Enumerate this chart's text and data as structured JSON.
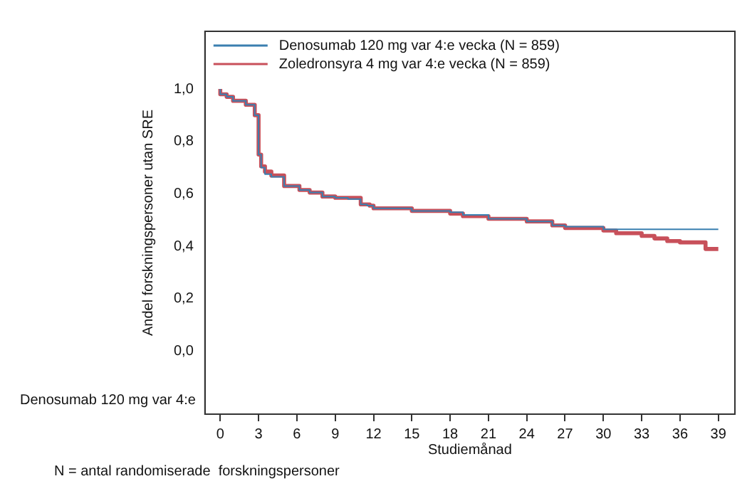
{
  "chart_data": {
    "type": "step",
    "xlabel": "Studiemånad",
    "ylabel": "Andel forskningspersoner utan SRE",
    "xlim": [
      -1.2,
      40.3
    ],
    "xticks": [
      0,
      3,
      6,
      9,
      12,
      15,
      18,
      21,
      24,
      27,
      30,
      33,
      36,
      39
    ],
    "ylim": [
      -0.24,
      1.22
    ],
    "yticks": [
      {
        "value": 0,
        "label": "0,0"
      },
      {
        "value": 0.2,
        "label": "0,2"
      },
      {
        "value": 0.4,
        "label": "0,4"
      },
      {
        "value": 0.6,
        "label": "0,6"
      },
      {
        "value": 0.8,
        "label": "0,8"
      },
      {
        "value": 1,
        "label": "1,0"
      }
    ],
    "grid": false,
    "legend": "top left",
    "marker": "none",
    "annotations": [
      "Denosumab 120 mg var 4:e",
      "N = antal randomiserade  forskningspersoner"
    ],
    "series": [
      {
        "name": "Denosumab 120 mg var 4:e vecka (N = 859)",
        "color": "#3a7fb0",
        "x": [
          0,
          0.5,
          1,
          2,
          2.7,
          3,
          3.2,
          3.5,
          4,
          5,
          6.2,
          7,
          8,
          9,
          10,
          11,
          11.5,
          12,
          15,
          18,
          19,
          21,
          24,
          26,
          27,
          30,
          31.5,
          39
        ],
        "values": [
          1,
          0.98,
          0.97,
          0.955,
          0.94,
          0.9,
          0.75,
          0.7,
          0.675,
          0.665,
          0.63,
          0.615,
          0.605,
          0.59,
          0.585,
          0.58,
          0.56,
          0.555,
          0.545,
          0.535,
          0.53,
          0.52,
          0.505,
          0.495,
          0.48,
          0.475,
          0.465,
          0.465
        ]
      },
      {
        "name": "Zoledronsyra 4 mg var 4:e vecka (N = 859)",
        "color": "#c8505a",
        "x": [
          0,
          0.5,
          1,
          2,
          2.7,
          3,
          3.2,
          3.5,
          4,
          5,
          6.2,
          7,
          8,
          9,
          10,
          11,
          11.7,
          12,
          15,
          18,
          19,
          21,
          24,
          26,
          27,
          30,
          31,
          33,
          34,
          35,
          36,
          38,
          39
        ],
        "values": [
          1,
          0.98,
          0.97,
          0.955,
          0.94,
          0.9,
          0.75,
          0.705,
          0.685,
          0.67,
          0.63,
          0.615,
          0.605,
          0.59,
          0.585,
          0.585,
          0.56,
          0.555,
          0.545,
          0.535,
          0.525,
          0.515,
          0.505,
          0.495,
          0.48,
          0.47,
          0.46,
          0.45,
          0.44,
          0.43,
          0.42,
          0.415,
          0.39
        ]
      }
    ]
  }
}
